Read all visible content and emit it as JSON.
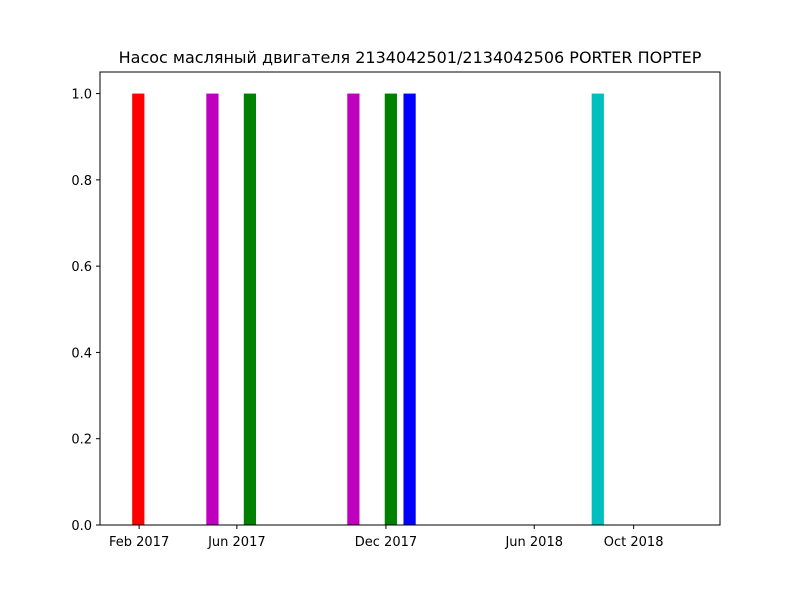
{
  "chart_data": {
    "type": "bar",
    "title": "Насос масляный двигателя 2134042501/2134042506 PORTER ПОРТЕР",
    "xlabel": "",
    "ylabel": "",
    "x_axis": "date",
    "xlim": [
      "2016-12-15",
      "2019-01-15"
    ],
    "ylim": [
      0,
      1.05
    ],
    "bar_width_days": 15,
    "x_ticks": [
      {
        "date": "2017-02-01",
        "label": "Feb 2017"
      },
      {
        "date": "2017-06-01",
        "label": "Jun 2017"
      },
      {
        "date": "2017-12-01",
        "label": "Dec 2017"
      },
      {
        "date": "2018-06-01",
        "label": "Jun 2018"
      },
      {
        "date": "2018-10-01",
        "label": "Oct 2018"
      }
    ],
    "y_ticks": [
      {
        "value": 0.0,
        "label": "0.0"
      },
      {
        "value": 0.2,
        "label": "0.2"
      },
      {
        "value": 0.4,
        "label": "0.4"
      },
      {
        "value": 0.6,
        "label": "0.6"
      },
      {
        "value": 0.8,
        "label": "0.8"
      },
      {
        "value": 1.0,
        "label": "1.0"
      }
    ],
    "bars": [
      {
        "date": "2017-01-31",
        "value": 1,
        "color": "#ff0000"
      },
      {
        "date": "2017-05-02",
        "value": 1,
        "color": "#bf00bf"
      },
      {
        "date": "2017-06-17",
        "value": 1,
        "color": "#008000"
      },
      {
        "date": "2017-10-22",
        "value": 1,
        "color": "#bf00bf"
      },
      {
        "date": "2017-12-07",
        "value": 1,
        "color": "#008000"
      },
      {
        "date": "2017-12-30",
        "value": 1,
        "color": "#0000ff"
      },
      {
        "date": "2018-08-18",
        "value": 1,
        "color": "#00bfbf"
      }
    ],
    "grid": false,
    "legend": "none"
  }
}
